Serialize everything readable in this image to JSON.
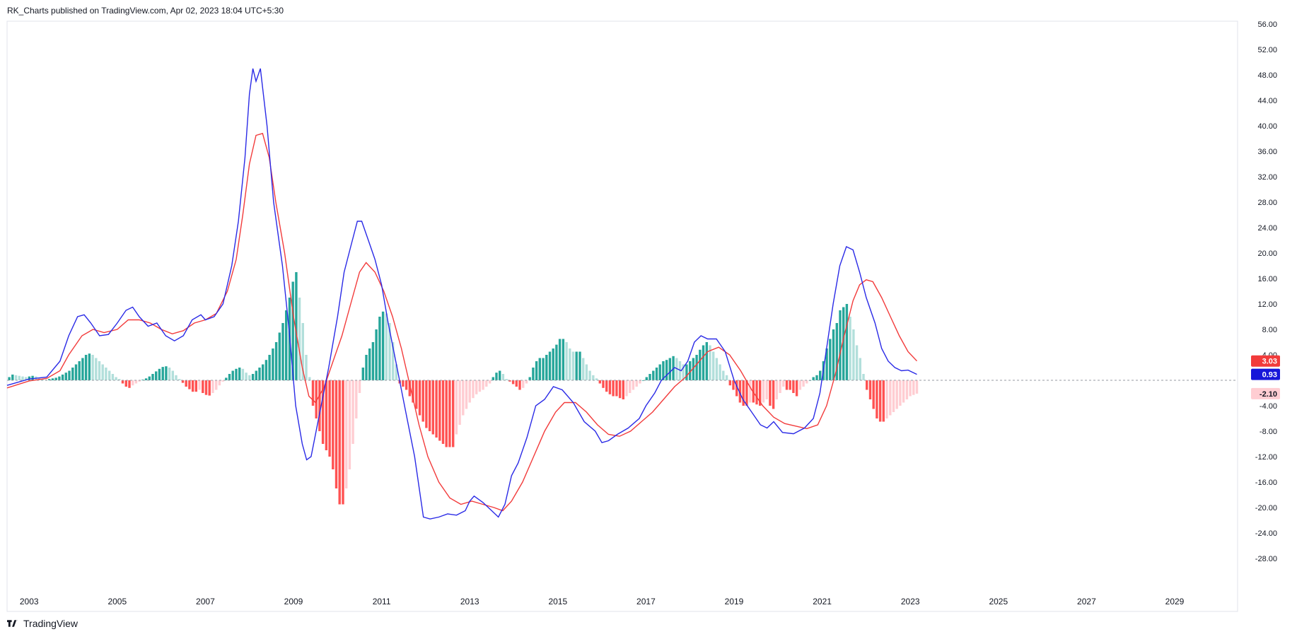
{
  "header": {
    "publisher_text": "RK_Charts published on TradingView.com, Apr 02, 2023 18:04 UTC+5:30"
  },
  "footer": {
    "brand": "TradingView"
  },
  "colors": {
    "macd_line": "#2a2ae6",
    "signal_line": "#f23b3b",
    "hist_pos_rising": "#26a69a",
    "hist_pos_falling": "#b2dfdb",
    "hist_neg_falling": "#ff5252",
    "hist_neg_rising": "#ffcdd2",
    "axis_text": "#131722",
    "zero_line": "#9598a1"
  },
  "chart_data": {
    "type": "line",
    "subtype": "macd-with-histogram",
    "grid": false,
    "xlim": [
      2002.5,
      2029.6
    ],
    "ylim": [
      -30,
      58
    ],
    "x_ticks": [
      "2003",
      "2005",
      "2007",
      "2009",
      "2011",
      "2013",
      "2015",
      "2017",
      "2019",
      "2021",
      "2023",
      "2025",
      "2027",
      "2029"
    ],
    "y_ticks": [
      "56.00",
      "52.00",
      "48.00",
      "44.00",
      "40.00",
      "36.00",
      "32.00",
      "28.00",
      "24.00",
      "20.00",
      "16.00",
      "12.00",
      "8.00",
      "4.00",
      "-4.00",
      "-8.00",
      "-12.00",
      "-16.00",
      "-20.00",
      "-24.00",
      "-28.00"
    ],
    "price_tags": [
      {
        "label": "3.03",
        "value": 3.03,
        "bg": "#f23b3b",
        "fg": "#ffffff"
      },
      {
        "label": "0.93",
        "value": 0.93,
        "bg": "#1717d9",
        "fg": "#ffffff"
      },
      {
        "label": "-2.10",
        "value": -2.1,
        "bg": "#ffcdd2",
        "fg": "#131722"
      }
    ],
    "series": [
      {
        "key": "macd",
        "points": [
          [
            2002.5,
            -0.8
          ],
          [
            2003.0,
            0.2
          ],
          [
            2003.4,
            0.5
          ],
          [
            2003.7,
            3
          ],
          [
            2003.9,
            7
          ],
          [
            2004.1,
            10
          ],
          [
            2004.25,
            10.3
          ],
          [
            2004.4,
            9
          ],
          [
            2004.6,
            7
          ],
          [
            2004.8,
            7.2
          ],
          [
            2005.0,
            9
          ],
          [
            2005.2,
            11
          ],
          [
            2005.35,
            11.5
          ],
          [
            2005.5,
            10
          ],
          [
            2005.7,
            8.5
          ],
          [
            2005.9,
            9
          ],
          [
            2006.1,
            7
          ],
          [
            2006.3,
            6.2
          ],
          [
            2006.5,
            7
          ],
          [
            2006.7,
            9.5
          ],
          [
            2006.9,
            10.3
          ],
          [
            2007.0,
            9.5
          ],
          [
            2007.2,
            10
          ],
          [
            2007.4,
            12
          ],
          [
            2007.6,
            18
          ],
          [
            2007.75,
            25
          ],
          [
            2007.9,
            35
          ],
          [
            2008.0,
            45
          ],
          [
            2008.08,
            49
          ],
          [
            2008.15,
            47
          ],
          [
            2008.25,
            49
          ],
          [
            2008.4,
            40
          ],
          [
            2008.55,
            28
          ],
          [
            2008.75,
            18
          ],
          [
            2008.9,
            8
          ],
          [
            2009.05,
            -4
          ],
          [
            2009.2,
            -10
          ],
          [
            2009.3,
            -12.5
          ],
          [
            2009.4,
            -12
          ],
          [
            2009.6,
            -5
          ],
          [
            2009.8,
            2
          ],
          [
            2010.0,
            10
          ],
          [
            2010.15,
            17
          ],
          [
            2010.3,
            21
          ],
          [
            2010.45,
            25
          ],
          [
            2010.55,
            25
          ],
          [
            2010.7,
            22
          ],
          [
            2010.85,
            19
          ],
          [
            2011.0,
            15
          ],
          [
            2011.15,
            9
          ],
          [
            2011.35,
            2
          ],
          [
            2011.55,
            -5
          ],
          [
            2011.75,
            -12
          ],
          [
            2011.95,
            -21.5
          ],
          [
            2012.1,
            -21.8
          ],
          [
            2012.3,
            -21.5
          ],
          [
            2012.5,
            -21
          ],
          [
            2012.7,
            -21.2
          ],
          [
            2012.9,
            -20.5
          ],
          [
            2013.0,
            -19
          ],
          [
            2013.1,
            -18.2
          ],
          [
            2013.3,
            -19.2
          ],
          [
            2013.5,
            -20.5
          ],
          [
            2013.65,
            -21.5
          ],
          [
            2013.8,
            -19.5
          ],
          [
            2013.95,
            -15
          ],
          [
            2014.1,
            -13
          ],
          [
            2014.3,
            -9
          ],
          [
            2014.5,
            -4
          ],
          [
            2014.7,
            -3
          ],
          [
            2014.9,
            -1
          ],
          [
            2015.1,
            -1.5
          ],
          [
            2015.35,
            -3.5
          ],
          [
            2015.6,
            -6.5
          ],
          [
            2015.85,
            -8
          ],
          [
            2016.0,
            -9.8
          ],
          [
            2016.15,
            -9.5
          ],
          [
            2016.35,
            -8.5
          ],
          [
            2016.6,
            -7.5
          ],
          [
            2016.85,
            -6
          ],
          [
            2017.0,
            -4
          ],
          [
            2017.2,
            -2
          ],
          [
            2017.35,
            0
          ],
          [
            2017.5,
            1
          ],
          [
            2017.65,
            2
          ],
          [
            2017.8,
            1.5
          ],
          [
            2017.95,
            3
          ],
          [
            2018.1,
            6
          ],
          [
            2018.25,
            7
          ],
          [
            2018.4,
            6.5
          ],
          [
            2018.6,
            6.5
          ],
          [
            2018.8,
            4.5
          ],
          [
            2019.0,
            0
          ],
          [
            2019.2,
            -3
          ],
          [
            2019.4,
            -5
          ],
          [
            2019.6,
            -7
          ],
          [
            2019.75,
            -7.5
          ],
          [
            2019.9,
            -6.5
          ],
          [
            2020.1,
            -8.2
          ],
          [
            2020.35,
            -8.4
          ],
          [
            2020.6,
            -7.5
          ],
          [
            2020.8,
            -6
          ],
          [
            2020.95,
            -2
          ],
          [
            2021.1,
            5
          ],
          [
            2021.25,
            12
          ],
          [
            2021.4,
            18
          ],
          [
            2021.55,
            21
          ],
          [
            2021.7,
            20.5
          ],
          [
            2021.85,
            17
          ],
          [
            2022.0,
            13
          ],
          [
            2022.2,
            9
          ],
          [
            2022.35,
            5
          ],
          [
            2022.5,
            3
          ],
          [
            2022.65,
            2
          ],
          [
            2022.8,
            1.5
          ],
          [
            2022.95,
            1.6
          ],
          [
            2023.15,
            0.93
          ]
        ]
      },
      {
        "key": "signal",
        "points": [
          [
            2002.5,
            -1.2
          ],
          [
            2003.0,
            -0.1
          ],
          [
            2003.4,
            0.3
          ],
          [
            2003.7,
            1.5
          ],
          [
            2003.9,
            4
          ],
          [
            2004.2,
            7
          ],
          [
            2004.45,
            8
          ],
          [
            2004.7,
            7.5
          ],
          [
            2005.0,
            8
          ],
          [
            2005.25,
            9.5
          ],
          [
            2005.5,
            9.5
          ],
          [
            2005.75,
            9
          ],
          [
            2006.0,
            8
          ],
          [
            2006.25,
            7.3
          ],
          [
            2006.5,
            7.8
          ],
          [
            2006.75,
            9
          ],
          [
            2007.0,
            9.5
          ],
          [
            2007.25,
            10.5
          ],
          [
            2007.5,
            14
          ],
          [
            2007.7,
            19
          ],
          [
            2007.85,
            26
          ],
          [
            2008.0,
            34
          ],
          [
            2008.15,
            38.5
          ],
          [
            2008.3,
            38.8
          ],
          [
            2008.45,
            35
          ],
          [
            2008.6,
            28
          ],
          [
            2008.8,
            20
          ],
          [
            2009.0,
            10
          ],
          [
            2009.2,
            2
          ],
          [
            2009.35,
            -2.5
          ],
          [
            2009.5,
            -3.5
          ],
          [
            2009.7,
            -1
          ],
          [
            2009.9,
            3
          ],
          [
            2010.1,
            7
          ],
          [
            2010.3,
            12
          ],
          [
            2010.5,
            17
          ],
          [
            2010.65,
            18.5
          ],
          [
            2010.85,
            17
          ],
          [
            2011.05,
            14
          ],
          [
            2011.25,
            10
          ],
          [
            2011.45,
            5
          ],
          [
            2011.65,
            -1
          ],
          [
            2011.85,
            -7
          ],
          [
            2012.05,
            -12
          ],
          [
            2012.3,
            -16
          ],
          [
            2012.55,
            -18.5
          ],
          [
            2012.8,
            -19.5
          ],
          [
            2013.05,
            -19
          ],
          [
            2013.3,
            -19.5
          ],
          [
            2013.55,
            -20
          ],
          [
            2013.75,
            -20.5
          ],
          [
            2013.95,
            -19
          ],
          [
            2014.2,
            -16
          ],
          [
            2014.45,
            -12
          ],
          [
            2014.7,
            -8
          ],
          [
            2014.95,
            -5
          ],
          [
            2015.15,
            -3.5
          ],
          [
            2015.4,
            -3.5
          ],
          [
            2015.65,
            -5
          ],
          [
            2015.9,
            -7
          ],
          [
            2016.15,
            -8.5
          ],
          [
            2016.4,
            -8.8
          ],
          [
            2016.65,
            -8
          ],
          [
            2016.9,
            -6.5
          ],
          [
            2017.15,
            -5
          ],
          [
            2017.4,
            -3
          ],
          [
            2017.65,
            -1
          ],
          [
            2017.9,
            0.5
          ],
          [
            2018.15,
            2.5
          ],
          [
            2018.4,
            4.5
          ],
          [
            2018.65,
            5.2
          ],
          [
            2018.9,
            4
          ],
          [
            2019.15,
            1.5
          ],
          [
            2019.4,
            -1.5
          ],
          [
            2019.65,
            -4
          ],
          [
            2019.9,
            -5.8
          ],
          [
            2020.15,
            -6.8
          ],
          [
            2020.4,
            -7.2
          ],
          [
            2020.65,
            -7.6
          ],
          [
            2020.9,
            -7
          ],
          [
            2021.1,
            -4
          ],
          [
            2021.3,
            1
          ],
          [
            2021.5,
            7
          ],
          [
            2021.7,
            12.5
          ],
          [
            2021.85,
            15
          ],
          [
            2022.0,
            15.8
          ],
          [
            2022.15,
            15.5
          ],
          [
            2022.35,
            13
          ],
          [
            2022.55,
            10
          ],
          [
            2022.75,
            7
          ],
          [
            2022.95,
            4.5
          ],
          [
            2023.15,
            3.03
          ]
        ]
      },
      {
        "key": "histogram",
        "values": [
          0.5,
          0.9,
          0.8,
          0.7,
          0.6,
          0.5,
          0.6,
          0.7,
          0.6,
          0.4,
          0.2,
          0.1,
          0.2,
          0.3,
          0.4,
          0.6,
          0.9,
          1.2,
          1.5,
          2,
          2.5,
          3,
          3.5,
          4,
          4.2,
          4,
          3.5,
          3,
          2.5,
          2,
          1.5,
          1,
          0.5,
          0.2,
          -0.5,
          -1,
          -1.2,
          -0.8,
          -0.5,
          -0.2,
          0.1,
          0.3,
          0.6,
          1,
          1.4,
          1.8,
          2.1,
          2.2,
          2,
          1.5,
          0.8,
          0.2,
          -0.4,
          -1,
          -1.4,
          -1.8,
          -1.8,
          -1.5,
          -2,
          -2.3,
          -2.4,
          -2,
          -1.5,
          -0.8,
          -0.2,
          0.4,
          1,
          1.5,
          1.8,
          2,
          1.8,
          1.2,
          0.8,
          1,
          1.5,
          2,
          2.5,
          3.2,
          4,
          5,
          6,
          7.5,
          9,
          11,
          13,
          15.5,
          17,
          13,
          9,
          4,
          0.5,
          -4,
          -6,
          -8,
          -10,
          -11,
          -12,
          -14,
          -17,
          -19.5,
          -19.5,
          -17,
          -14,
          -10,
          -6,
          -2,
          2,
          4,
          5,
          6,
          8,
          10,
          10.8,
          10.5,
          9,
          6,
          2.5,
          -0.5,
          -1,
          -1.5,
          -2.5,
          -3.5,
          -4.5,
          -5.5,
          -6.5,
          -7.5,
          -8,
          -8.5,
          -9,
          -9.5,
          -10,
          -10.5,
          -10.5,
          -10.5,
          -8.5,
          -7,
          -5.5,
          -4.5,
          -3.5,
          -2.8,
          -2.2,
          -1.8,
          -1.5,
          -1,
          -0.5,
          0.5,
          1.2,
          1.5,
          1,
          0.2,
          -0.2,
          -0.6,
          -1,
          -1.5,
          -1.2,
          -0.5,
          0.5,
          2,
          3,
          3.5,
          3.5,
          4,
          4.5,
          5,
          5.6,
          6.5,
          6.5,
          6,
          5,
          4.5,
          4.5,
          4.5,
          3.5,
          2.5,
          1.5,
          0.8,
          0.3,
          -0.5,
          -1.2,
          -1.8,
          -2.2,
          -2.5,
          -2.5,
          -2.8,
          -3,
          -2.5,
          -2,
          -1.5,
          -1,
          -0.5,
          0,
          0.5,
          1,
          1.5,
          2,
          2.5,
          3,
          3.2,
          3.5,
          3.8,
          3.5,
          3,
          2.5,
          2.5,
          3,
          3.5,
          4,
          4.8,
          5.5,
          6,
          5.5,
          4.5,
          3.5,
          2.5,
          1.5,
          0.8,
          -0.8,
          -1.5,
          -2.5,
          -3.5,
          -4,
          -4,
          -3.5,
          -3.5,
          -3.8,
          -4,
          -3.5,
          -3,
          -4,
          -4.5,
          -3,
          -2,
          -1,
          -1.5,
          -1.5,
          -2,
          -2.5,
          -1.5,
          -1,
          -0.5,
          0,
          0.5,
          0.8,
          1.5,
          3,
          5,
          6.5,
          8,
          9,
          11,
          11.5,
          12,
          10,
          8,
          5.5,
          3.5,
          1,
          -1.5,
          -3,
          -4.5,
          -6,
          -6.5,
          -6.5,
          -6,
          -5.5,
          -5,
          -4.5,
          -4,
          -3.5,
          -3,
          -2.5,
          -2.3,
          -2.1
        ]
      }
    ]
  }
}
